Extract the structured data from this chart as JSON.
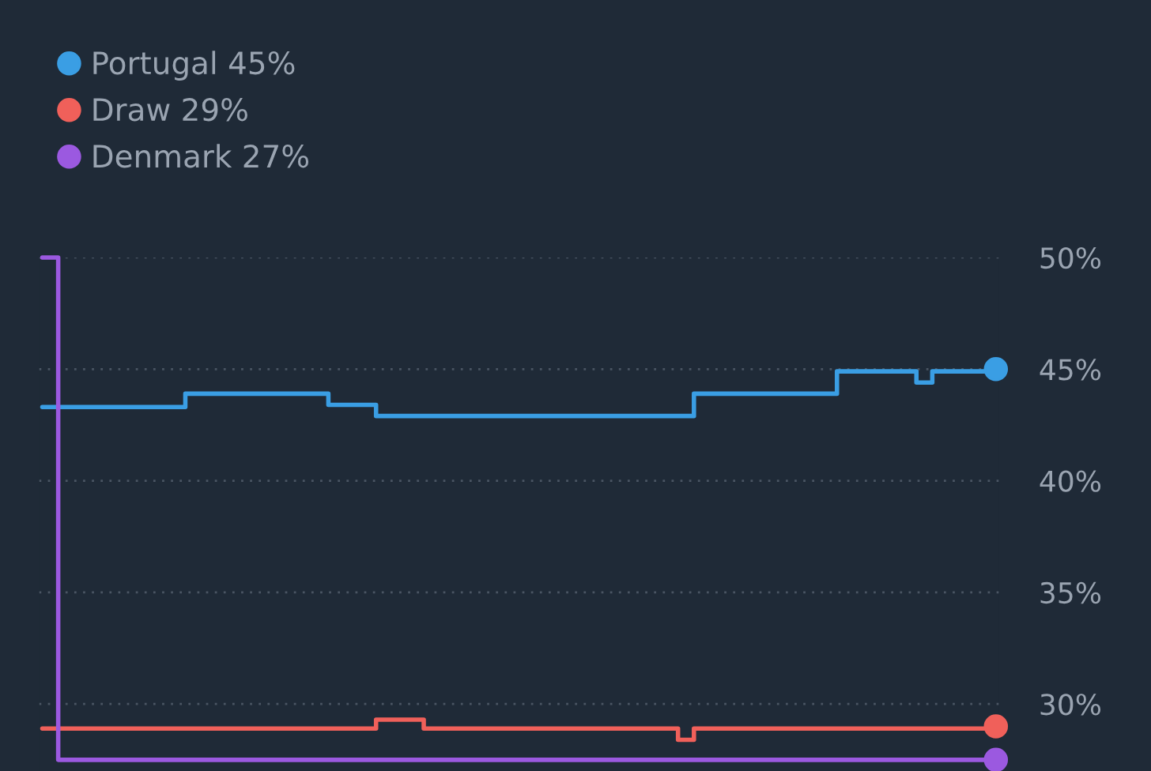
{
  "chart_data": {
    "type": "step",
    "categories": [
      null,
      null,
      null,
      null,
      null,
      null,
      null,
      null,
      null,
      null,
      null,
      null,
      null,
      null,
      null,
      null,
      null,
      null,
      null,
      null,
      null,
      null,
      null,
      null,
      null,
      null,
      null,
      null,
      null,
      null,
      null,
      null,
      null,
      null,
      null,
      null,
      null,
      null,
      null,
      null,
      null,
      null,
      null,
      null,
      null,
      null,
      null,
      null,
      null,
      null,
      null,
      null,
      null,
      null,
      null,
      null,
      null,
      null,
      null,
      null,
      null
    ],
    "series": [
      {
        "name": "Portugal 45%",
        "color": "#3a9ee4",
        "values": [
          43.3,
          43.3,
          43.3,
          43.3,
          43.3,
          43.3,
          43.3,
          43.3,
          43.3,
          43.9,
          43.9,
          43.9,
          43.9,
          43.9,
          43.9,
          43.9,
          43.9,
          43.9,
          43.4,
          43.4,
          43.4,
          42.9,
          42.9,
          42.9,
          42.9,
          42.9,
          42.9,
          42.9,
          42.9,
          42.9,
          42.9,
          42.9,
          42.9,
          42.9,
          42.9,
          42.9,
          42.9,
          42.9,
          42.9,
          42.9,
          42.9,
          43.9,
          43.9,
          43.9,
          43.9,
          43.9,
          43.9,
          43.9,
          43.9,
          43.9,
          44.9,
          44.9,
          44.9,
          44.9,
          44.9,
          44.4,
          44.9,
          44.9,
          44.9,
          44.9,
          45
        ]
      },
      {
        "name": "Draw 29%",
        "color": "#f0605a",
        "values": [
          28.9,
          28.9,
          28.9,
          28.9,
          28.9,
          28.9,
          28.9,
          28.9,
          28.9,
          28.9,
          28.9,
          28.9,
          28.9,
          28.9,
          28.9,
          28.9,
          28.9,
          28.9,
          28.9,
          28.9,
          28.9,
          29.3,
          29.3,
          29.3,
          28.9,
          28.9,
          28.9,
          28.9,
          28.9,
          28.9,
          28.9,
          28.9,
          28.9,
          28.9,
          28.9,
          28.9,
          28.9,
          28.9,
          28.9,
          28.9,
          28.4,
          28.9,
          28.9,
          28.9,
          28.9,
          28.9,
          28.9,
          28.9,
          28.9,
          28.9,
          28.9,
          28.9,
          28.9,
          28.9,
          28.9,
          28.9,
          28.9,
          28.9,
          28.9,
          28.9,
          29
        ]
      },
      {
        "name": "Denmark 27%",
        "color": "#9b59e0",
        "values": [
          50,
          27.5,
          27.5,
          27.5,
          27.5,
          27.5,
          27.5,
          27.5,
          27.5,
          27.5,
          27.5,
          27.5,
          27.5,
          27.5,
          27.5,
          27.5,
          27.5,
          27.5,
          27.5,
          27.5,
          27.5,
          27.5,
          27.5,
          27.5,
          27.5,
          27.5,
          27.5,
          27.5,
          27.5,
          27.5,
          27.5,
          27.5,
          27.5,
          27.5,
          27.5,
          27.5,
          27.5,
          27.5,
          27.5,
          27.5,
          27.5,
          27.5,
          27.5,
          27.5,
          27.5,
          27.5,
          27.5,
          27.5,
          27.5,
          27.5,
          27.5,
          27.5,
          27.5,
          27.5,
          27.5,
          27.5,
          27.5,
          27.5,
          27.5,
          27.5,
          27.5
        ]
      }
    ],
    "ylim": [
      27,
      50
    ],
    "yticks": [
      {
        "value": 30,
        "label": "30%"
      },
      {
        "value": 35,
        "label": "35%"
      },
      {
        "value": 40,
        "label": "40%"
      },
      {
        "value": 45,
        "label": "45%"
      },
      {
        "value": 50,
        "label": "50%"
      }
    ],
    "grid": "y",
    "legend": "top left",
    "line_style": "solid",
    "tick_labels": "y"
  }
}
